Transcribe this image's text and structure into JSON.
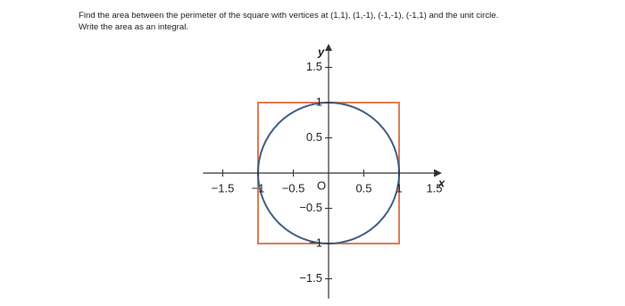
{
  "question": [
    "Find the area between the perimeter of the square with vertices at (1,1), (1,-1), (-1,-1), (-1,1) and the unit circle.",
    "Write the area as an integral."
  ],
  "figure": {
    "type": "plot",
    "xlabel": "x",
    "ylabel": "y",
    "origin_label": "O",
    "xlim": [
      -1.78,
      1.53
    ],
    "ylim": [
      -1.78,
      1.76
    ],
    "xticks": [
      {
        "value": -1.5,
        "label": "−1.5"
      },
      {
        "value": -1,
        "label": "−1"
      },
      {
        "value": -0.5,
        "label": "−0.5"
      },
      0.5,
      1,
      1.5
    ],
    "yticks": [
      {
        "value": -1.5,
        "label": "−1.5"
      },
      {
        "value": -1,
        "label": "−1"
      },
      {
        "value": -0.5,
        "label": "−0.5"
      },
      0.5,
      1,
      1.5
    ],
    "square": {
      "x": [
        1,
        1,
        -1,
        -1
      ],
      "y": [
        1,
        -1,
        -1,
        1
      ],
      "color": "#e07b53"
    },
    "circle": {
      "radius": 1,
      "color": "#3f5f86"
    }
  }
}
